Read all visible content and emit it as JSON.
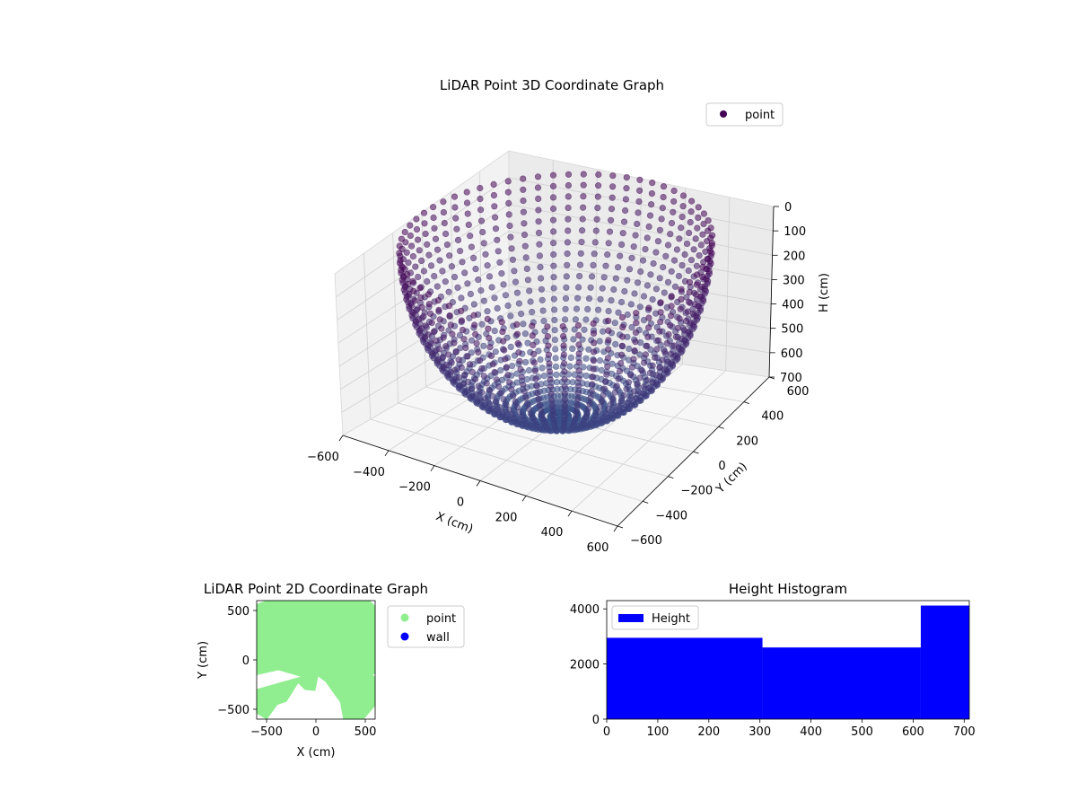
{
  "chart_data": [
    {
      "type": "scatter",
      "projection": "3d",
      "title": "LiDAR Point 3D Coordinate Graph",
      "xlabel": "X (cm)",
      "ylabel": "Y (cm)",
      "zlabel": "H (cm)",
      "xlim": [
        -600,
        600
      ],
      "ylim": [
        -600,
        600
      ],
      "zlim": [
        700,
        0
      ],
      "zaxis_inverted": true,
      "x_ticks": [
        "−600",
        "−400",
        "−200",
        "0",
        "200",
        "400",
        "600"
      ],
      "y_ticks": [
        "−600",
        "−400",
        "−200",
        "0",
        "200",
        "400",
        "600"
      ],
      "z_ticks": [
        "0",
        "100",
        "200",
        "300",
        "400",
        "500",
        "600",
        "700"
      ],
      "grid": true,
      "legend": {
        "position": "upper-right",
        "entries": [
          {
            "label": "point",
            "color": "#440154"
          }
        ]
      },
      "series": [
        {
          "name": "point",
          "color_low": "#3b528b",
          "color_high": "#440154",
          "shape": "bowl",
          "rim_radius": 590,
          "bowl_depth": 690,
          "n_meridians": 64,
          "n_rings": 26
        }
      ]
    },
    {
      "type": "scatter",
      "title": "LiDAR Point 2D Coordinate Graph",
      "xlabel": "X (cm)",
      "ylabel": "Y (cm)",
      "xlim": [
        -600,
        600
      ],
      "ylim": [
        -600,
        600
      ],
      "x_ticks": [
        "−500",
        "0",
        "500"
      ],
      "y_ticks": [
        "−500",
        "0",
        "500"
      ],
      "legend": {
        "position": "outside-right",
        "entries": [
          {
            "label": "point",
            "color": "#90ee90"
          },
          {
            "label": "wall",
            "color": "#0000ff"
          }
        ]
      },
      "series": [
        {
          "name": "point",
          "color": "#90ee90",
          "region": [
            [
              -540,
              600
            ],
            [
              -490,
              600
            ],
            [
              -600,
              560
            ],
            [
              -600,
              -150
            ],
            [
              -380,
              -100
            ],
            [
              -140,
              -170
            ],
            [
              -600,
              -300
            ],
            [
              -600,
              -540
            ],
            [
              -500,
              -600
            ],
            [
              -390,
              -450
            ],
            [
              -300,
              -420
            ],
            [
              -180,
              -230
            ],
            [
              -110,
              -300
            ],
            [
              -10,
              -310
            ],
            [
              20,
              -160
            ],
            [
              100,
              -220
            ],
            [
              250,
              -430
            ],
            [
              280,
              -600
            ],
            [
              480,
              -600
            ],
            [
              600,
              -460
            ],
            [
              600,
              -180
            ],
            [
              500,
              -70
            ],
            [
              390,
              -60
            ],
            [
              440,
              -150
            ],
            [
              600,
              -140
            ],
            [
              600,
              540
            ],
            [
              540,
              600
            ]
          ]
        },
        {
          "name": "wall",
          "color": "#0000ff",
          "values": []
        }
      ]
    },
    {
      "type": "bar",
      "title": "Height Histogram",
      "xlabel": "",
      "ylabel": "",
      "xlim": [
        0,
        710
      ],
      "ylim": [
        0,
        4300
      ],
      "x_ticks": [
        "0",
        "100",
        "200",
        "300",
        "400",
        "500",
        "600",
        "700"
      ],
      "y_ticks": [
        "0",
        "2000",
        "4000"
      ],
      "legend": {
        "position": "upper-left",
        "entries": [
          {
            "label": "Height",
            "color": "#0000ff"
          }
        ]
      },
      "series": [
        {
          "name": "Height",
          "color": "#0000ff",
          "bins": [
            {
              "x0": 0,
              "x1": 305,
              "value": 2950
            },
            {
              "x0": 305,
              "x1": 615,
              "value": 2600
            },
            {
              "x0": 615,
              "x1": 710,
              "value": 4120
            }
          ]
        }
      ]
    }
  ]
}
